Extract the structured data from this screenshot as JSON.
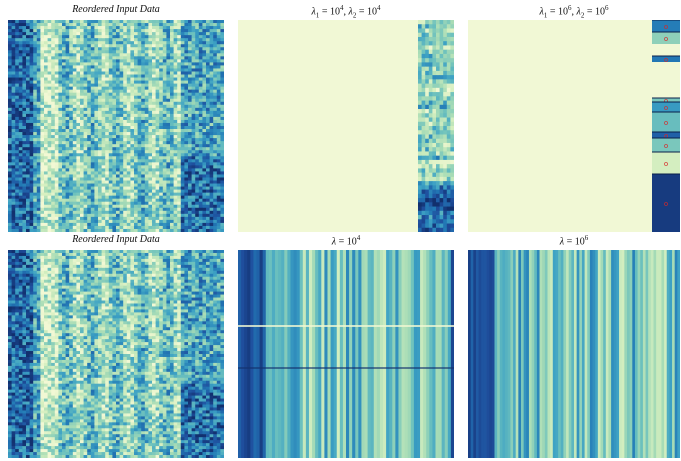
{
  "panels": [
    {
      "id": "p1",
      "title": "Reordered Input Data",
      "title_style": "italic",
      "kind": "input"
    },
    {
      "id": "p2",
      "title_lambda1": "10",
      "exp1": "4",
      "title_lambda2": "10",
      "exp2": "4",
      "kind": "bicluster-weak"
    },
    {
      "id": "p3",
      "title_lambda1": "10",
      "exp1": "6",
      "title_lambda2": "10",
      "exp2": "6",
      "kind": "bicluster-strong",
      "cluster_marker": "o"
    },
    {
      "id": "p4",
      "title": "Reordered Input Data",
      "title_style": "italic",
      "kind": "input"
    },
    {
      "id": "p5",
      "title_lambda": "10",
      "exp": "4",
      "kind": "columns-weak"
    },
    {
      "id": "p6",
      "title_lambda": "10",
      "exp": "6",
      "kind": "columns-strong"
    }
  ],
  "colormap": {
    "name": "YlGnBu",
    "stops": [
      "#f2f8d4",
      "#d6efc0",
      "#a8dcb6",
      "#6fc2bd",
      "#3ea2c4",
      "#2279b5",
      "#1f4f9e",
      "#12306e"
    ]
  },
  "background_color": "#f1f8d5",
  "marker_color": "#d62728"
}
